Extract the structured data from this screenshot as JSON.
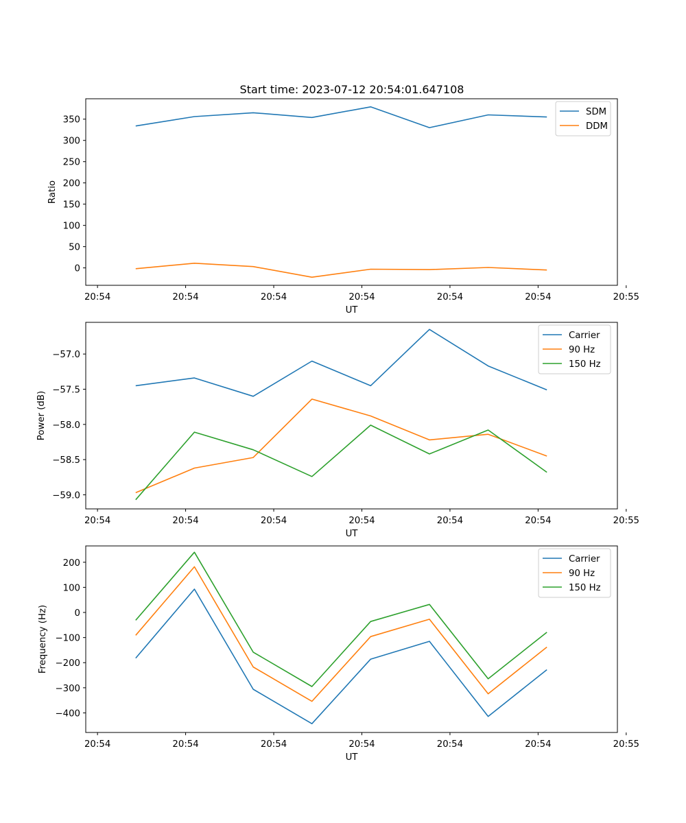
{
  "figure_title": "Start time: 2023-07-12 20:54:01.647108",
  "colors": {
    "c0": "#1f77b4",
    "c1": "#ff7f0e",
    "c2": "#2ca02c"
  },
  "chart_data": [
    {
      "type": "line",
      "title": "Start time: 2023-07-12 20:54:01.647108",
      "xlabel": "UT",
      "ylabel": "Ratio",
      "xlim": [
        -0.85,
        8.2
      ],
      "x_ticks": [
        -0.65,
        0.85,
        2.35,
        3.85,
        5.35,
        6.85,
        8.35
      ],
      "x_tick_labels": [
        "20:54",
        "20:54",
        "20:54",
        "20:54",
        "20:54",
        "20:54",
        "20:55"
      ],
      "ylim": [
        -41,
        398
      ],
      "y_ticks": [
        0,
        50,
        100,
        150,
        200,
        250,
        300,
        350
      ],
      "y_tick_labels": [
        "0",
        "50",
        "100",
        "150",
        "200",
        "250",
        "300",
        "350"
      ],
      "legend_loc": "upper right",
      "x": [
        0,
        1,
        2,
        3,
        4,
        5,
        6,
        7
      ],
      "series": [
        {
          "name": "SDM",
          "color": "#1f77b4",
          "values": [
            334,
            356,
            365,
            354,
            379,
            330,
            360,
            355
          ]
        },
        {
          "name": "DDM",
          "color": "#ff7f0e",
          "values": [
            -2,
            11,
            3,
            -22,
            -3,
            -4,
            1,
            -5
          ]
        }
      ]
    },
    {
      "type": "line",
      "title": "",
      "xlabel": "UT",
      "ylabel": "Power (dB)",
      "xlim": [
        -0.85,
        8.2
      ],
      "x_ticks": [
        -0.65,
        0.85,
        2.35,
        3.85,
        5.35,
        6.85,
        8.35
      ],
      "x_tick_labels": [
        "20:54",
        "20:54",
        "20:54",
        "20:54",
        "20:54",
        "20:54",
        "20:55"
      ],
      "ylim": [
        -59.2,
        -56.55
      ],
      "y_ticks": [
        -59.0,
        -58.5,
        -58.0,
        -57.5,
        -57.0
      ],
      "y_tick_labels": [
        "−59.0",
        "−58.5",
        "−58.0",
        "−57.5",
        "−57.0"
      ],
      "legend_loc": "upper right",
      "x": [
        0,
        1,
        2,
        3,
        4,
        5,
        6,
        7
      ],
      "series": [
        {
          "name": "Carrier",
          "color": "#1f77b4",
          "values": [
            -57.45,
            -57.34,
            -57.6,
            -57.1,
            -57.45,
            -56.65,
            -57.17,
            -57.51
          ]
        },
        {
          "name": "90 Hz",
          "color": "#ff7f0e",
          "values": [
            -58.97,
            -58.62,
            -58.47,
            -57.64,
            -57.88,
            -58.22,
            -58.14,
            -58.45
          ]
        },
        {
          "name": "150 Hz",
          "color": "#2ca02c",
          "values": [
            -59.07,
            -58.11,
            -58.36,
            -58.74,
            -58.01,
            -58.42,
            -58.08,
            -58.68
          ]
        }
      ]
    },
    {
      "type": "line",
      "title": "",
      "xlabel": "UT",
      "ylabel": "Frequency (Hz)",
      "xlim": [
        -0.85,
        8.2
      ],
      "x_ticks": [
        -0.65,
        0.85,
        2.35,
        3.85,
        5.35,
        6.85,
        8.35
      ],
      "x_tick_labels": [
        "20:54",
        "20:54",
        "20:54",
        "20:54",
        "20:54",
        "20:54",
        "20:55"
      ],
      "ylim": [
        -478,
        265
      ],
      "y_ticks": [
        -400,
        -300,
        -200,
        -100,
        0,
        100,
        200
      ],
      "y_tick_labels": [
        "−400",
        "−300",
        "−200",
        "−100",
        "0",
        "100",
        "200"
      ],
      "legend_loc": "upper right",
      "x": [
        0,
        1,
        2,
        3,
        4,
        5,
        6,
        7
      ],
      "series": [
        {
          "name": "Carrier",
          "color": "#1f77b4",
          "values": [
            -182,
            93,
            -306,
            -443,
            -186,
            -115,
            -414,
            -228
          ]
        },
        {
          "name": "90 Hz",
          "color": "#ff7f0e",
          "values": [
            -91,
            182,
            -217,
            -354,
            -96,
            -27,
            -324,
            -138
          ]
        },
        {
          "name": "150 Hz",
          "color": "#2ca02c",
          "values": [
            -31,
            240,
            -158,
            -295,
            -36,
            32,
            -264,
            -79
          ]
        }
      ]
    }
  ]
}
